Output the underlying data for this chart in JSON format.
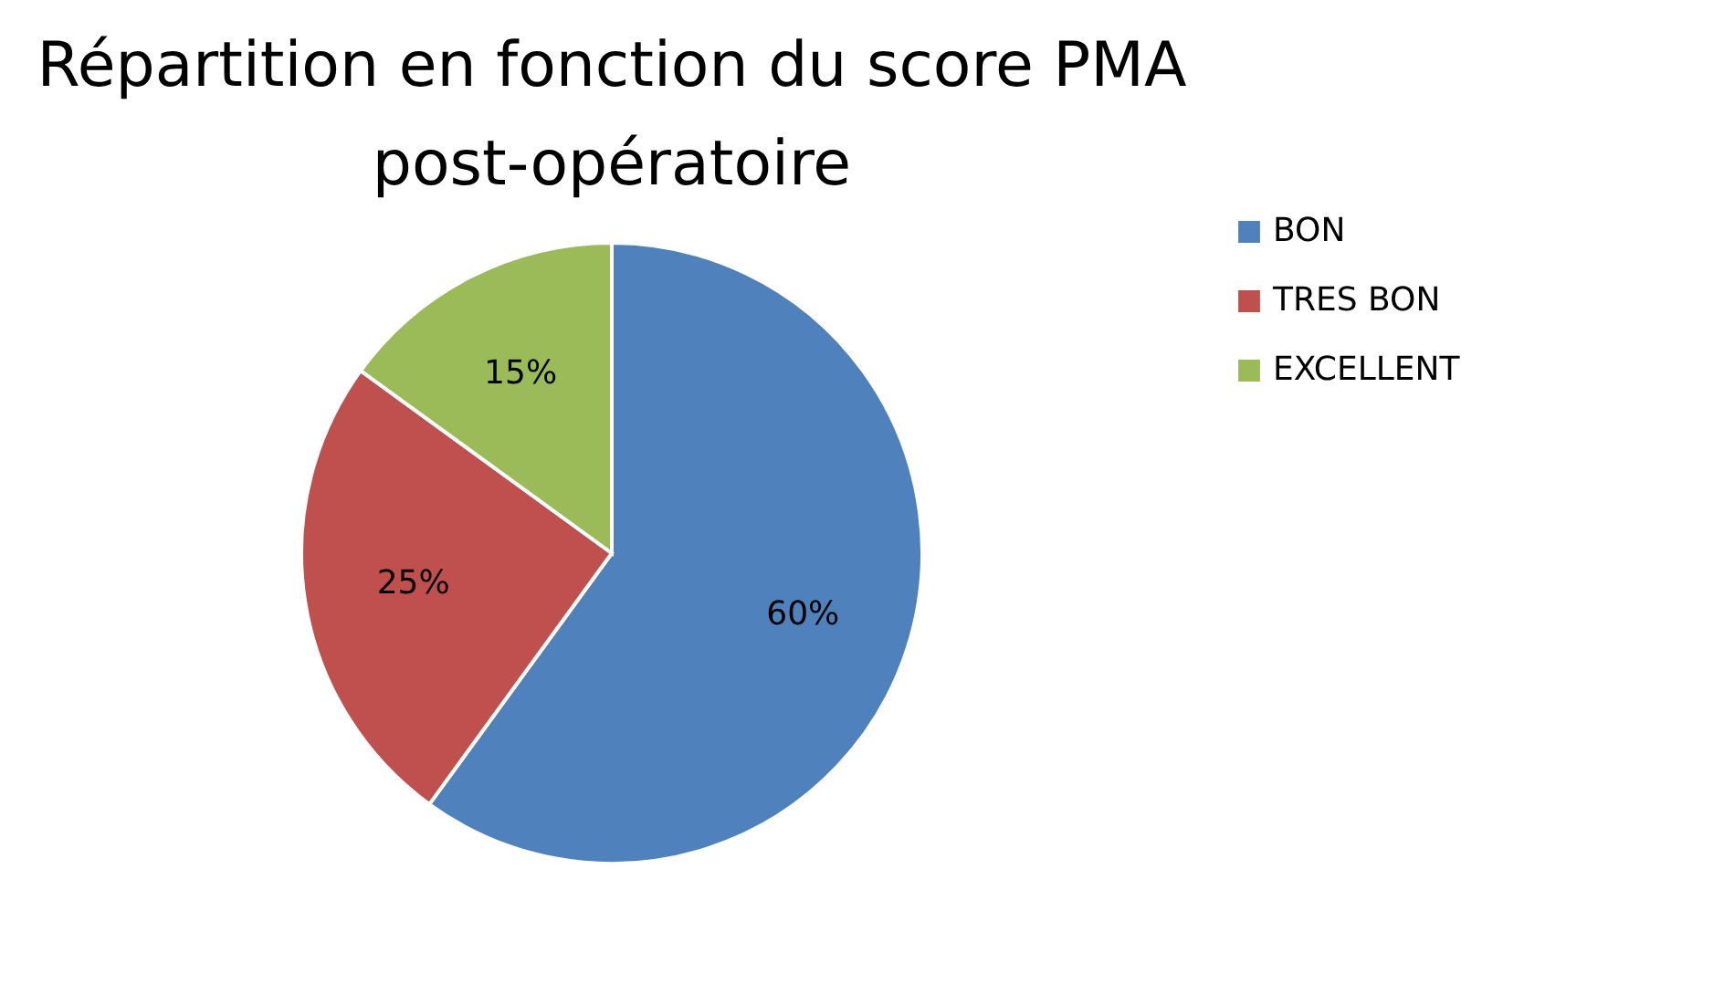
{
  "chart_data": {
    "type": "pie",
    "title": "Répartition en fonction du score PMA post-opératoire",
    "categories": [
      "BON",
      "TRES BON",
      "EXCELLENT"
    ],
    "values": [
      60,
      25,
      15
    ],
    "colors": [
      "#4f81bd",
      "#c0504d",
      "#9bbb59"
    ],
    "value_labels": [
      "60%",
      "25%",
      "15%"
    ],
    "legend": "right"
  }
}
